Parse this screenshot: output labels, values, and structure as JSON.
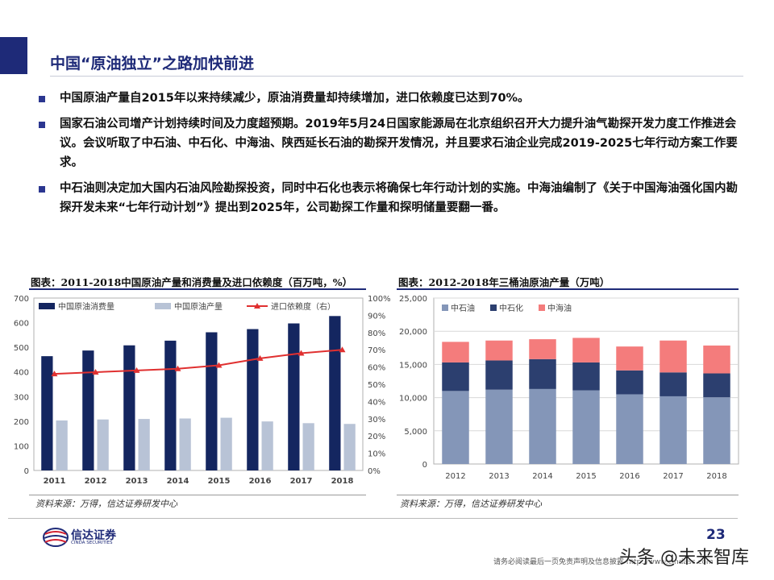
{
  "slide": {
    "title": "中国“原油独立”之路加快前进",
    "bullets": [
      "中国原油产量自2015年以来持续减少，原油消费量却持续增加，进口依赖度已达到70%。",
      "国家石油公司增产计划持续时间及力度超预期。2019年5月24日国家能源局在北京组织召开大力提升油气勘探开发力度工作推进会议。会议听取了中石油、中石化、中海油、陕西延长石油的勘探开发情况，并且要求石油企业完成2019-2025七年行动方案工作要求。",
      "中石油则决定加大国内石油风险勘探投资，同时中石化也表示将确保七年行动计划的实施。中海油编制了《关于中国海油强化国内勘探开发未来“七年行动计划”》提出到2025年，公司勘探工作量和探明储量要翻一番。"
    ]
  },
  "chart_data": [
    {
      "type": "bar",
      "title": "图表：2011-2018中国原油产量和消费量及进口依赖度（百万吨，%）",
      "categories": [
        "2011",
        "2012",
        "2013",
        "2014",
        "2015",
        "2016",
        "2017",
        "2018"
      ],
      "series": [
        {
          "name": "中国原油消费量",
          "kind": "bar",
          "color": "#142660",
          "values": [
            464,
            487,
            508,
            527,
            561,
            574,
            597,
            627
          ]
        },
        {
          "name": "中国原油产量",
          "kind": "bar",
          "color": "#b8c3d6",
          "values": [
            203,
            207,
            209,
            211,
            214,
            199,
            192,
            189
          ]
        },
        {
          "name": "进口依赖度（右）",
          "kind": "line",
          "color": "#e03030",
          "values": [
            56,
            57,
            58,
            59,
            61,
            65,
            68,
            70
          ]
        }
      ],
      "ylim": [
        0,
        700
      ],
      "yticks": [
        "0",
        "100",
        "200",
        "300",
        "400",
        "500",
        "600",
        "700"
      ],
      "y2lim": [
        0,
        100
      ],
      "y2ticks": [
        "0%",
        "10%",
        "20%",
        "30%",
        "40%",
        "50%",
        "60%",
        "70%",
        "80%",
        "90%",
        "100%"
      ],
      "legend": "top",
      "source": "资料来源：万得，信达证券研发中心"
    },
    {
      "type": "bar",
      "stacked": true,
      "title": "图表：2012-2018年三桶油原油产量（万吨）",
      "categories": [
        "2012",
        "2013",
        "2014",
        "2015",
        "2016",
        "2017",
        "2018"
      ],
      "series": [
        {
          "name": "中石油",
          "color": "#8496b8",
          "values": [
            11000,
            11200,
            11300,
            11100,
            10500,
            10200,
            10050
          ]
        },
        {
          "name": "中石化",
          "color": "#2c3f6f",
          "values": [
            4300,
            4400,
            4500,
            4200,
            3600,
            3600,
            3600
          ]
        },
        {
          "name": "中海油",
          "color": "#f47c7c",
          "values": [
            3100,
            3000,
            3000,
            3700,
            3600,
            4800,
            4200
          ]
        }
      ],
      "ylim": [
        0,
        25000
      ],
      "yticks": [
        "0",
        "5,000",
        "10,000",
        "15,000",
        "20,000",
        "25,000"
      ],
      "legend": "top-left",
      "source": "资料来源：万得，信达证券研发中心"
    }
  ],
  "footer": {
    "logo_cn": "信达证券",
    "logo_en": "CINDA SECURITIES",
    "page_number": "23",
    "disclaimer": "请务必阅读最后一页免责声明及信息披露 http://www.cindasc.com",
    "watermark": "头条 @未来智库"
  },
  "colors": {
    "brand": "#1e2a78",
    "accent_red": "#e03030"
  }
}
